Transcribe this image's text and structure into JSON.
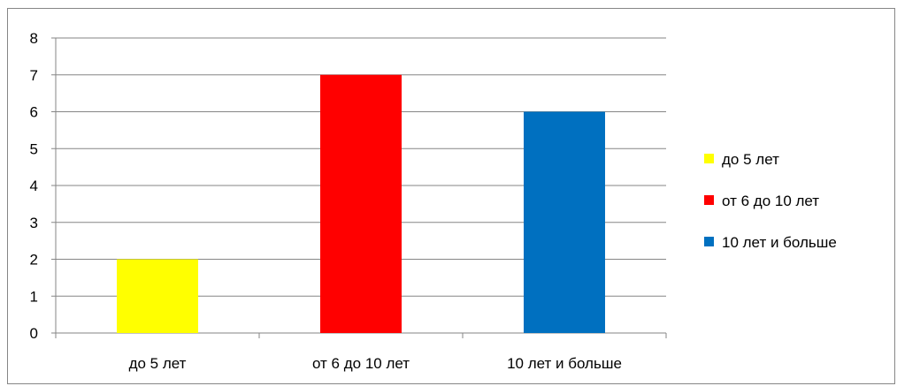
{
  "chart_data": {
    "type": "bar",
    "categories": [
      "до 5 лет",
      "от 6 до 10 лет",
      "10 лет и больше"
    ],
    "values": [
      2,
      7,
      6
    ],
    "colors": [
      "#FFFF00",
      "#FF0000",
      "#0070C0"
    ],
    "ylim": [
      0,
      8
    ],
    "yticks": [
      0,
      1,
      2,
      3,
      4,
      5,
      6,
      7,
      8
    ],
    "grid": true,
    "legend": {
      "position": "right",
      "entries": [
        "до 5 лет",
        "от 6 до 10 лет",
        "10 лет и больше"
      ]
    }
  }
}
